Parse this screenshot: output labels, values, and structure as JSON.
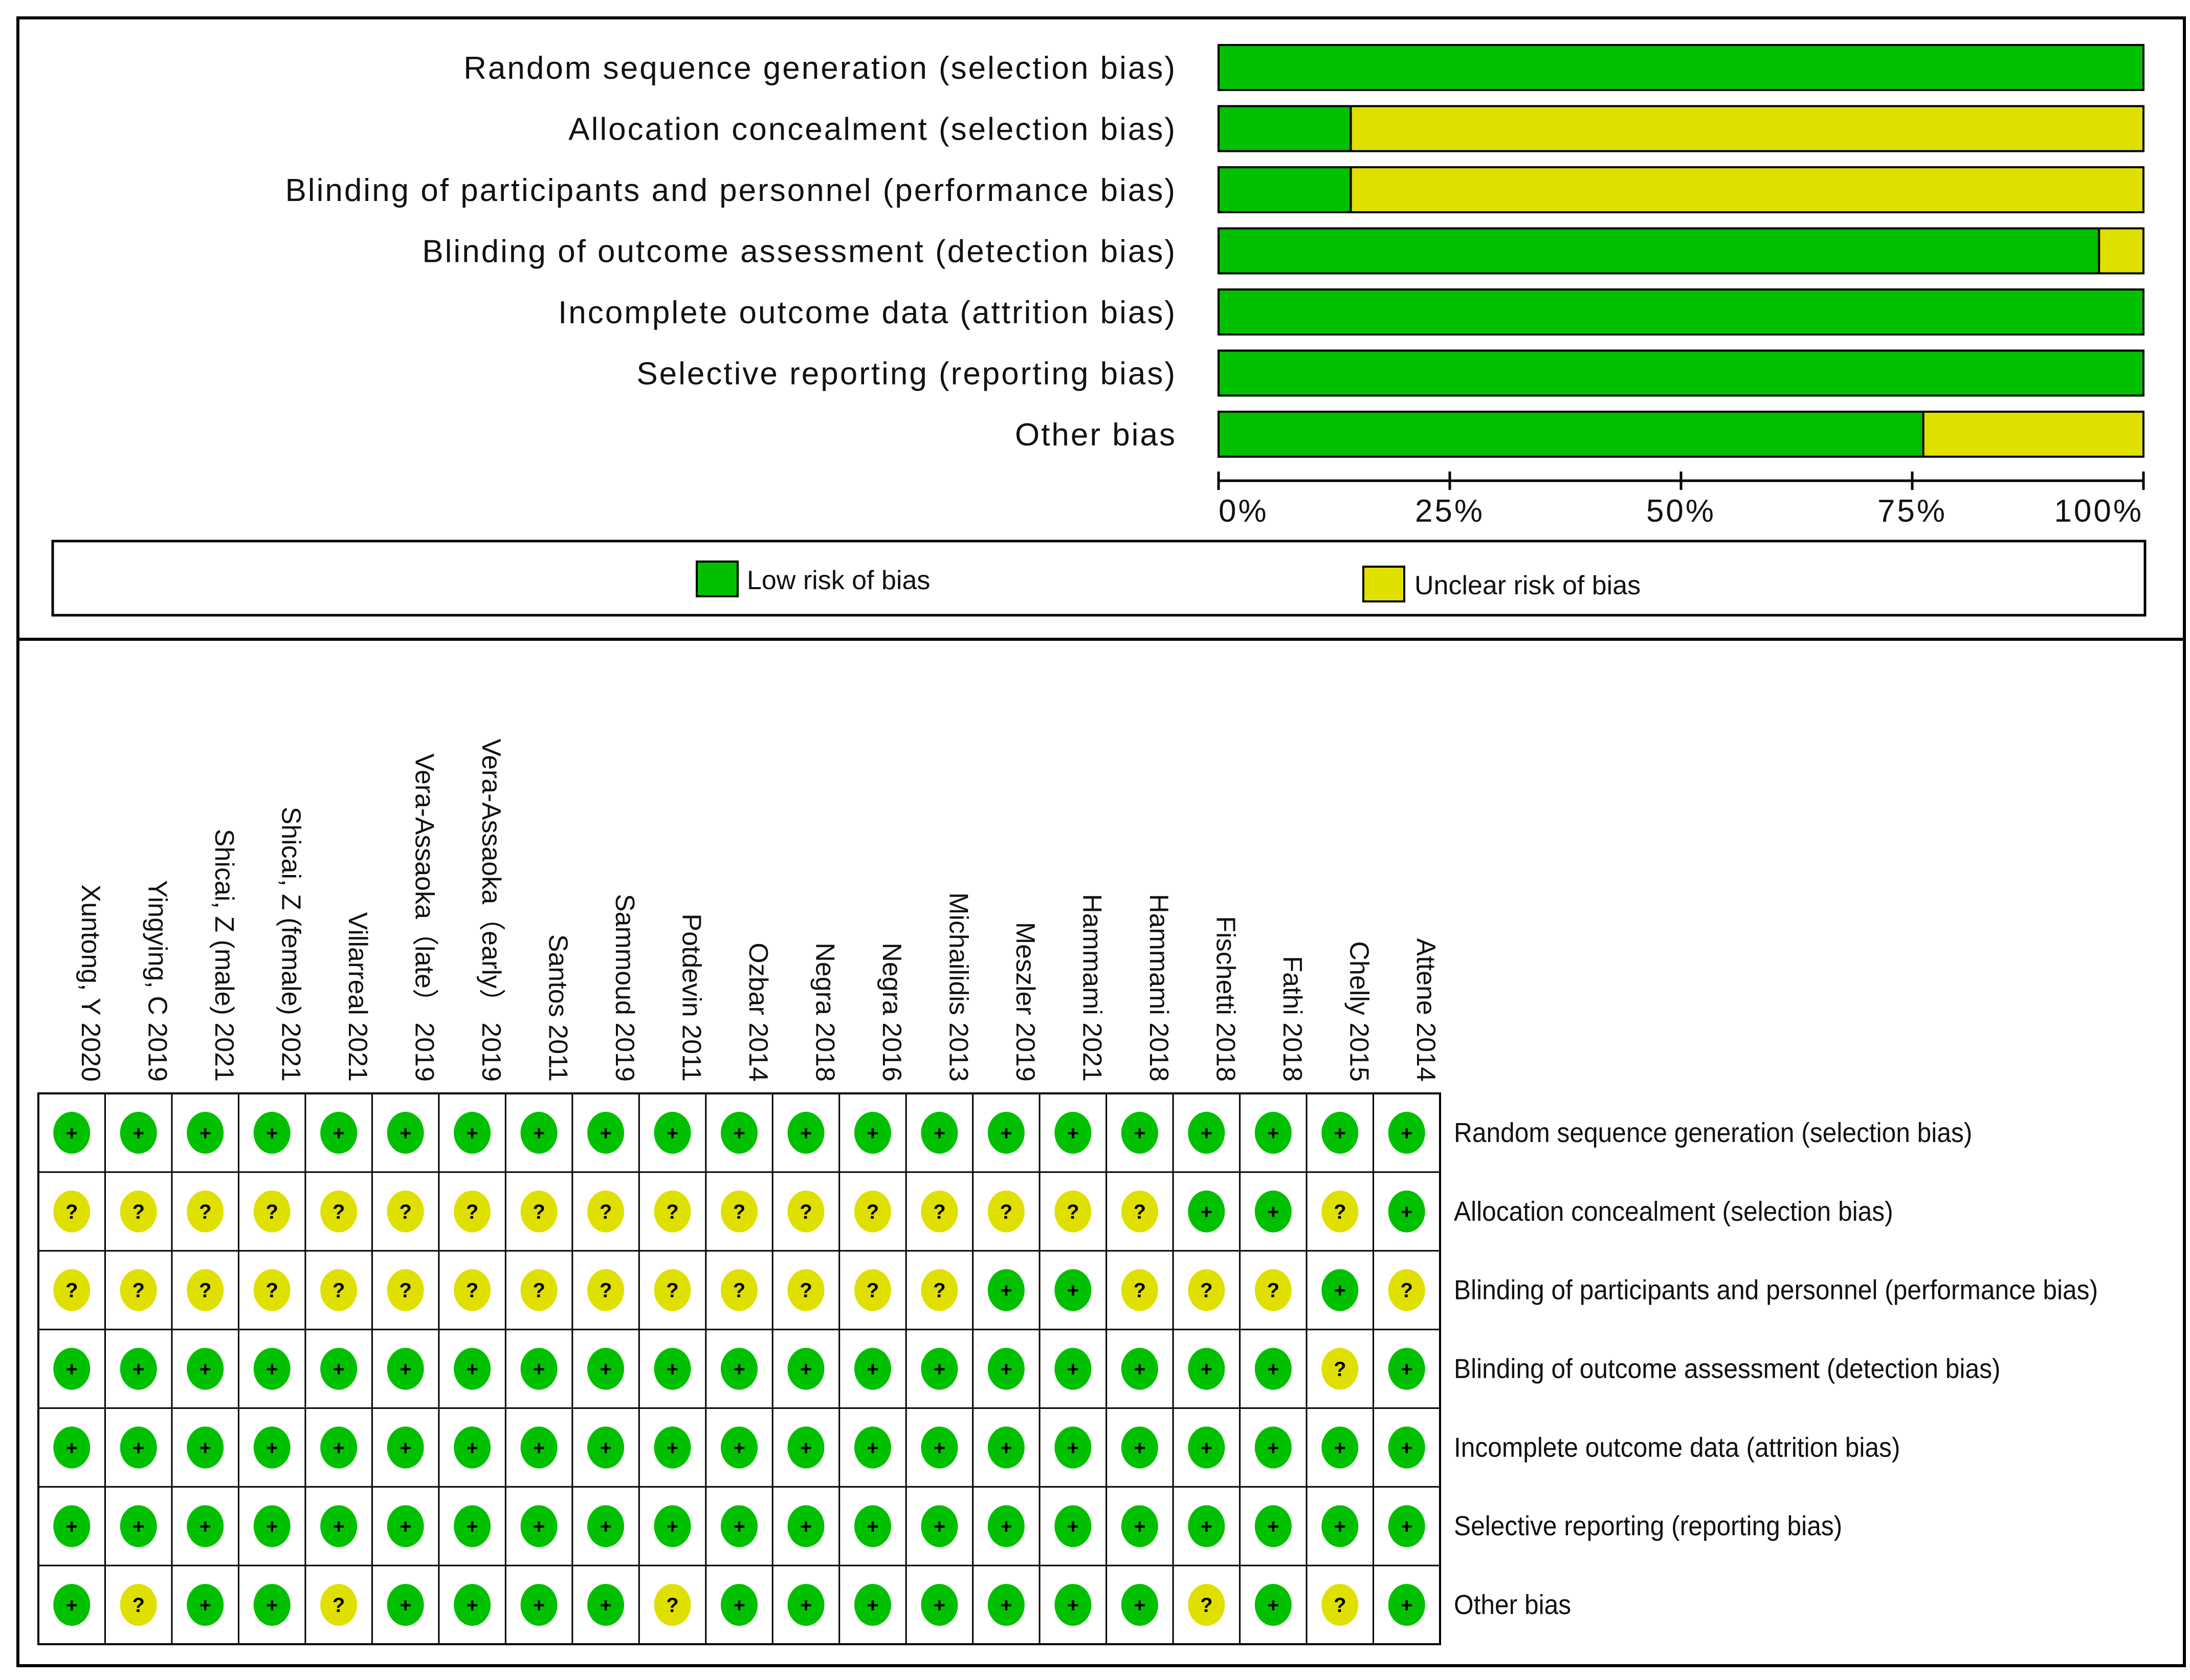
{
  "chart_data": [
    {
      "type": "stacked-bar",
      "title": "",
      "categories": [
        "Random sequence generation (selection bias)",
        "Allocation concealment (selection bias)",
        "Blinding of participants and personnel (performance bias)",
        "Blinding of outcome assessment (detection bias)",
        "Incomplete outcome data (attrition bias)",
        "Selective reporting (reporting bias)",
        "Other bias"
      ],
      "series": [
        {
          "name": "Low risk of bias",
          "color": "#00c000",
          "values": [
            100,
            14.3,
            14.3,
            95.2,
            100,
            100,
            76.2
          ]
        },
        {
          "name": "Unclear risk of bias",
          "color": "#e0e000",
          "values": [
            0,
            85.7,
            85.7,
            4.8,
            0,
            0,
            23.8
          ]
        }
      ],
      "xlim": [
        0,
        100
      ],
      "tick_labels": [
        "0%",
        "25%",
        "50%",
        "75%",
        "100%"
      ],
      "legend_items": [
        "Low risk of bias",
        "Unclear risk of bias"
      ]
    },
    {
      "type": "table",
      "studies": [
        "Xuntong, Y 2020",
        "Yingying, C  2019",
        "Shicai, Z (male) 2021",
        "Shicai, Z (female) 2021",
        "Villarreal 2021",
        "Vera-Assaoka（late） 2019",
        "Vera-Assaoka（early） 2019",
        "Santos 2011",
        "Sammoud 2019",
        "Potdevin 2011",
        "Ozbar 2014",
        "Negra 2018",
        "Negra 2016",
        "Michailidis 2013",
        "Meszler 2019",
        "Hammami 2021",
        "Hammami 2018",
        "Fischetti 2018",
        "Fathi 2018",
        "Chelly 2015",
        "Attene 2014"
      ],
      "domains": [
        "Random sequence generation (selection bias)",
        "Allocation concealment (selection bias)",
        "Blinding of participants and personnel (performance bias)",
        "Blinding of outcome assessment (detection bias)",
        "Incomplete outcome data (attrition bias)",
        "Selective reporting (reporting bias)",
        "Other bias"
      ],
      "judgements": [
        [
          "+",
          "+",
          "+",
          "+",
          "+",
          "+",
          "+",
          "+",
          "+",
          "+",
          "+",
          "+",
          "+",
          "+",
          "+",
          "+",
          "+",
          "+",
          "+",
          "+",
          "+"
        ],
        [
          "?",
          "?",
          "?",
          "?",
          "?",
          "?",
          "?",
          "?",
          "?",
          "?",
          "?",
          "?",
          "?",
          "?",
          "?",
          "?",
          "?",
          "+",
          "+",
          "?",
          "+"
        ],
        [
          "?",
          "?",
          "?",
          "?",
          "?",
          "?",
          "?",
          "?",
          "?",
          "?",
          "?",
          "?",
          "?",
          "?",
          "+",
          "+",
          "?",
          "?",
          "?",
          "+",
          "?"
        ],
        [
          "+",
          "+",
          "+",
          "+",
          "+",
          "+",
          "+",
          "+",
          "+",
          "+",
          "+",
          "+",
          "+",
          "+",
          "+",
          "+",
          "+",
          "+",
          "+",
          "?",
          "+"
        ],
        [
          "+",
          "+",
          "+",
          "+",
          "+",
          "+",
          "+",
          "+",
          "+",
          "+",
          "+",
          "+",
          "+",
          "+",
          "+",
          "+",
          "+",
          "+",
          "+",
          "+",
          "+"
        ],
        [
          "+",
          "+",
          "+",
          "+",
          "+",
          "+",
          "+",
          "+",
          "+",
          "+",
          "+",
          "+",
          "+",
          "+",
          "+",
          "+",
          "+",
          "+",
          "+",
          "+",
          "+"
        ],
        [
          "+",
          "?",
          "+",
          "+",
          "?",
          "+",
          "+",
          "+",
          "+",
          "?",
          "+",
          "+",
          "+",
          "+",
          "+",
          "+",
          "+",
          "?",
          "+",
          "?",
          "+"
        ]
      ],
      "colors": {
        "low": "#00c000",
        "unclear": "#e0e000"
      }
    }
  ]
}
